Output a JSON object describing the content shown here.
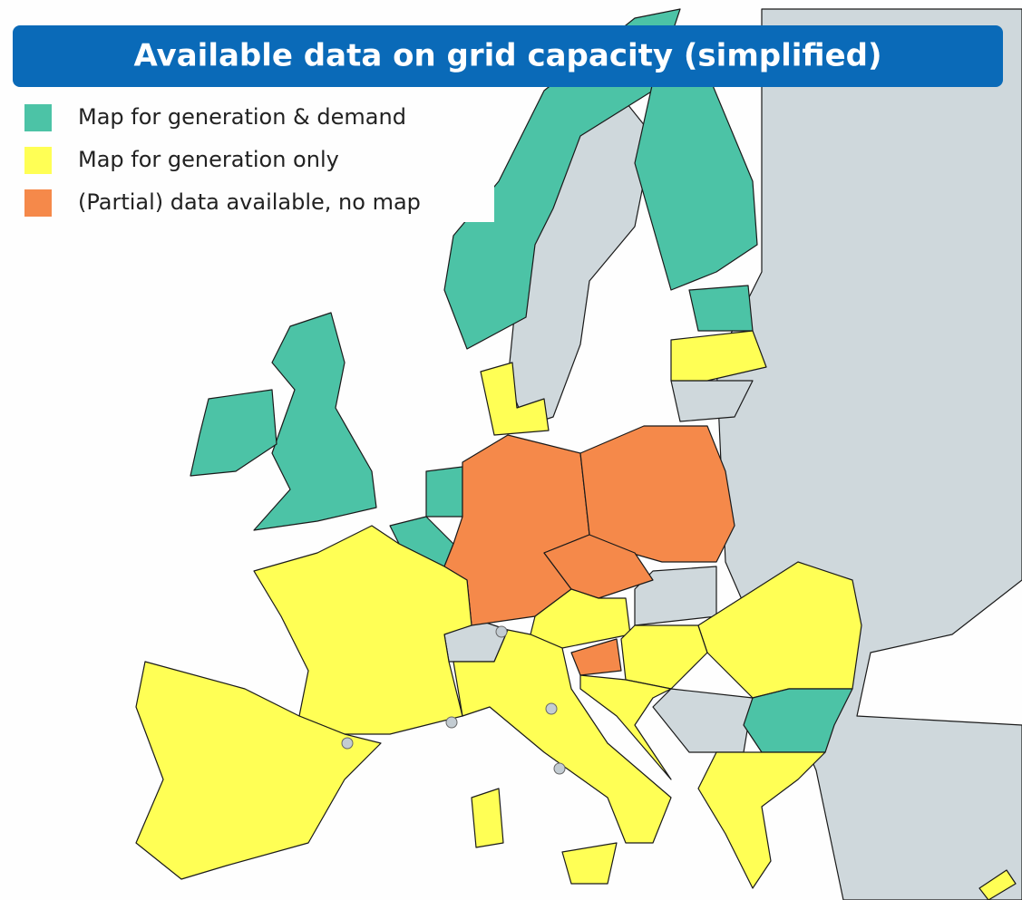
{
  "header": {
    "title": "Available data on grid capacity (simplified)"
  },
  "legend": {
    "items": [
      {
        "label": "Map for generation & demand",
        "color": "#4cc3a6"
      },
      {
        "label": "Map for generation only",
        "color": "#ffff55"
      },
      {
        "label": "(Partial) data available, no map",
        "color": "#f5894a"
      }
    ]
  }
}
